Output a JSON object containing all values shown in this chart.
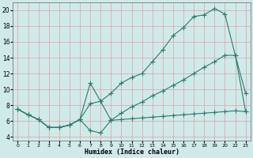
{
  "xlabel": "Humidex (Indice chaleur)",
  "line_color": "#2d7a6a",
  "background_color": "#d0eaea",
  "grid_color": "#dea0a0",
  "line1_x": [
    0,
    1,
    2,
    3,
    4,
    5,
    6,
    7,
    8,
    9,
    10,
    11,
    12,
    13,
    14,
    15,
    16,
    17,
    18,
    19,
    20,
    21,
    22
  ],
  "line1_y": [
    7.5,
    6.8,
    6.2,
    5.2,
    5.2,
    5.5,
    6.2,
    8.2,
    8.5,
    9.5,
    10.8,
    11.5,
    12.0,
    13.5,
    15.0,
    16.8,
    17.8,
    19.2,
    19.4,
    20.2,
    19.5,
    14.3,
    9.5
  ],
  "line2_x": [
    0,
    1,
    2,
    3,
    4,
    5,
    6,
    7,
    8,
    9,
    10,
    11,
    12,
    13,
    14,
    15,
    16,
    17,
    18,
    19,
    20,
    21,
    22
  ],
  "line2_y": [
    7.5,
    6.8,
    6.2,
    5.2,
    5.2,
    5.5,
    6.2,
    4.8,
    4.5,
    6.1,
    7.0,
    7.8,
    8.4,
    9.2,
    9.8,
    10.5,
    11.2,
    12.0,
    12.8,
    13.5,
    14.3,
    14.3,
    7.2
  ],
  "line3_x": [
    0,
    1,
    2,
    3,
    4,
    5,
    6,
    7,
    8,
    9,
    10,
    11,
    12,
    13,
    14,
    15,
    16,
    17,
    18,
    19,
    20,
    21,
    22
  ],
  "line3_y": [
    7.5,
    6.8,
    6.2,
    5.2,
    5.2,
    5.5,
    6.2,
    10.8,
    8.5,
    6.1,
    6.2,
    6.3,
    6.4,
    6.5,
    6.6,
    6.7,
    6.8,
    6.9,
    7.0,
    7.1,
    7.2,
    7.3,
    7.2
  ],
  "xtick_labels": [
    "0",
    "1",
    "2",
    "3",
    "4",
    "5",
    "6",
    "7",
    "8",
    "9",
    "10",
    "11",
    "12",
    "13",
    "14",
    "15",
    "16",
    "17",
    "18",
    "19",
    "20",
    "22",
    "23"
  ],
  "xlim": [
    -0.5,
    22.5
  ],
  "ylim": [
    3.5,
    21.0
  ],
  "yticks": [
    4,
    6,
    8,
    10,
    12,
    14,
    16,
    18,
    20
  ]
}
